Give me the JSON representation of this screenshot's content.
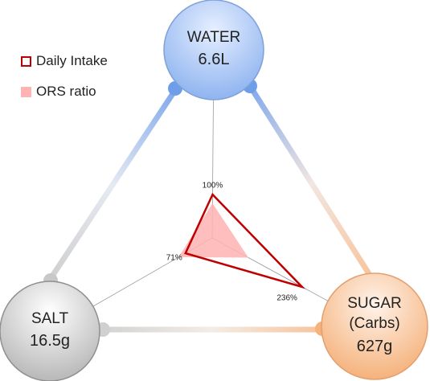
{
  "chart_data": {
    "type": "radar",
    "categories": [
      "WATER",
      "SUGAR\n(Carbs)",
      "SALT"
    ],
    "amounts": [
      "6.6L",
      "627g",
      "16.5g"
    ],
    "series": [
      {
        "name": "Daily Intake",
        "color": "#c00000",
        "values": [
          100,
          236,
          71
        ],
        "value_labels": [
          "100%",
          "236%",
          "71%"
        ]
      },
      {
        "name": "ORS ratio",
        "color": "#ffb3b3",
        "values": [
          80,
          95,
          89
        ]
      }
    ]
  }
}
